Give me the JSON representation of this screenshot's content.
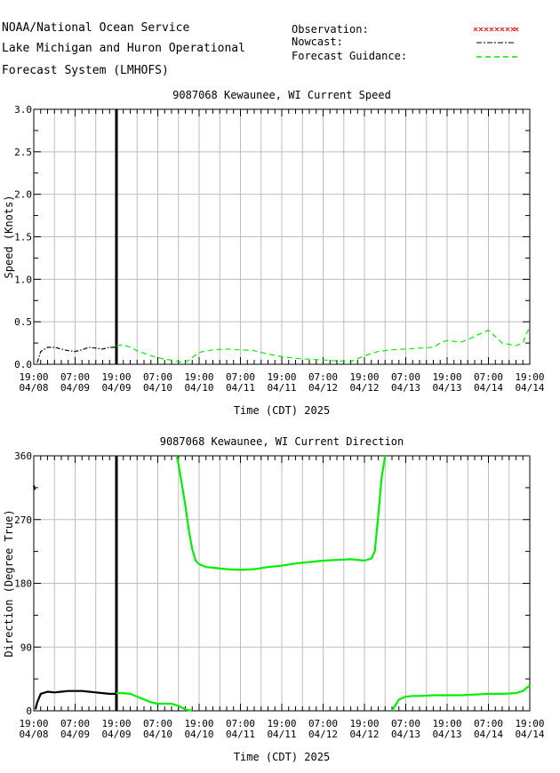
{
  "header": {
    "line1": "NOAA/National Ocean Service",
    "line2": "Lake Michigan and Huron Operational",
    "line3": "Forecast System (LMHOFS)"
  },
  "legend": {
    "observation": "Observation:",
    "nowcast": "Nowcast:",
    "forecast": "Forecast Guidance:",
    "colors": {
      "observation": "#ff0000",
      "nowcast": "#000000",
      "forecast": "#00ee00"
    }
  },
  "x_ticks": [
    [
      "19:00",
      "04/08"
    ],
    [
      "07:00",
      "04/09"
    ],
    [
      "19:00",
      "04/09"
    ],
    [
      "07:00",
      "04/10"
    ],
    [
      "19:00",
      "04/10"
    ],
    [
      "07:00",
      "04/11"
    ],
    [
      "19:00",
      "04/11"
    ],
    [
      "07:00",
      "04/12"
    ],
    [
      "19:00",
      "04/12"
    ],
    [
      "07:00",
      "04/13"
    ],
    [
      "19:00",
      "04/13"
    ],
    [
      "07:00",
      "04/14"
    ],
    [
      "19:00",
      "04/14"
    ]
  ],
  "chart_data": [
    {
      "type": "line",
      "title": "9087068 Kewaunee, WI Current Speed",
      "xlabel": "Time (CDT) 2025",
      "ylabel": "Speed (Knots)",
      "x_unit": "hours since 04/08 19:00",
      "ylim": [
        0,
        3
      ],
      "y_ticks": [
        "0.0",
        "0.5",
        "1.0",
        "1.5",
        "2.0",
        "2.5",
        "3.0"
      ],
      "y_tick_values": [
        0,
        0.5,
        1,
        1.5,
        2,
        2.5,
        3
      ],
      "nowcast_end": 24,
      "grid": true,
      "series": [
        {
          "name": "Nowcast",
          "style": "dash-dot",
          "color": "#000000",
          "x": [
            1,
            2,
            4,
            6,
            8,
            10,
            12,
            14,
            16,
            18,
            20,
            22,
            24
          ],
          "y": [
            0.02,
            0.15,
            0.2,
            0.2,
            0.18,
            0.16,
            0.15,
            0.17,
            0.2,
            0.19,
            0.18,
            0.2,
            0.2
          ]
        },
        {
          "name": "Forecast Guidance",
          "style": "dashed",
          "color": "#00ee00",
          "x": [
            24,
            26,
            28,
            30,
            32,
            34,
            36,
            38,
            40,
            42,
            44,
            46,
            48,
            52,
            56,
            60,
            64,
            68,
            72,
            76,
            80,
            84,
            88,
            92,
            96,
            100,
            104,
            108,
            112,
            116,
            118,
            120,
            122,
            124,
            126,
            128,
            132,
            136,
            140,
            142,
            143,
            144
          ],
          "y": [
            0.22,
            0.23,
            0.2,
            0.16,
            0.13,
            0.1,
            0.08,
            0.06,
            0.05,
            0.03,
            0.02,
            0.08,
            0.14,
            0.17,
            0.18,
            0.17,
            0.16,
            0.12,
            0.09,
            0.07,
            0.06,
            0.05,
            0.04,
            0.03,
            0.1,
            0.15,
            0.17,
            0.18,
            0.19,
            0.2,
            0.25,
            0.28,
            0.27,
            0.26,
            0.29,
            0.33,
            0.4,
            0.25,
            0.22,
            0.25,
            0.36,
            0.43
          ]
        }
      ]
    },
    {
      "type": "line",
      "title": "9087068 Kewaunee, WI Current Direction",
      "xlabel": "Time (CDT) 2025",
      "ylabel": "Direction (Degree True)",
      "x_unit": "hours since 04/08 19:00",
      "ylim": [
        0,
        360
      ],
      "y_ticks": [
        "0",
        "90",
        "180",
        "270",
        "360"
      ],
      "y_tick_values": [
        0,
        90,
        180,
        270,
        360
      ],
      "nowcast_end": 24,
      "grid": true,
      "series": [
        {
          "name": "Nowcast",
          "style": "solid",
          "color": "#000000",
          "x": [
            0,
            0.3
          ],
          "y": [
            318,
            312
          ]
        },
        {
          "name": "Nowcast",
          "style": "solid",
          "color": "#000000",
          "x": [
            0.5,
            1,
            2,
            4,
            6,
            8,
            10,
            12,
            14,
            16,
            18,
            20,
            22,
            24
          ],
          "y": [
            2,
            12,
            24,
            27,
            26,
            27,
            28,
            28,
            28,
            27,
            26,
            25,
            24,
            24
          ]
        },
        {
          "name": "Forecast Guidance",
          "style": "solid",
          "color": "#00ee00",
          "x": [
            24,
            26,
            28,
            30,
            32,
            34,
            36,
            38,
            40,
            42,
            44,
            46
          ],
          "y": [
            25,
            25,
            24,
            20,
            16,
            12,
            10,
            10,
            10,
            7,
            2,
            0
          ]
        },
        {
          "name": "Forecast Guidance",
          "style": "solid",
          "color": "#00ee00",
          "x": [
            41.5,
            42,
            43,
            44,
            45,
            46,
            47,
            48,
            50,
            52,
            56,
            60,
            64,
            68,
            72,
            76,
            80,
            84,
            88,
            92,
            96,
            98,
            99,
            100,
            101,
            102
          ],
          "y": [
            360,
            348,
            320,
            290,
            255,
            228,
            212,
            207,
            203,
            202,
            200,
            199,
            200,
            203,
            205,
            208,
            210,
            212,
            213,
            214,
            212,
            215,
            225,
            275,
            330,
            360
          ]
        },
        {
          "name": "Forecast Guidance",
          "style": "solid",
          "color": "#00ee00",
          "x": [
            104,
            105,
            106,
            108,
            110,
            112,
            116,
            120,
            124,
            128,
            132,
            136,
            140,
            142,
            143,
            144
          ],
          "y": [
            0,
            8,
            16,
            20,
            21,
            21,
            22,
            22,
            22,
            23,
            24,
            24,
            25,
            28,
            32,
            36
          ]
        }
      ]
    }
  ]
}
